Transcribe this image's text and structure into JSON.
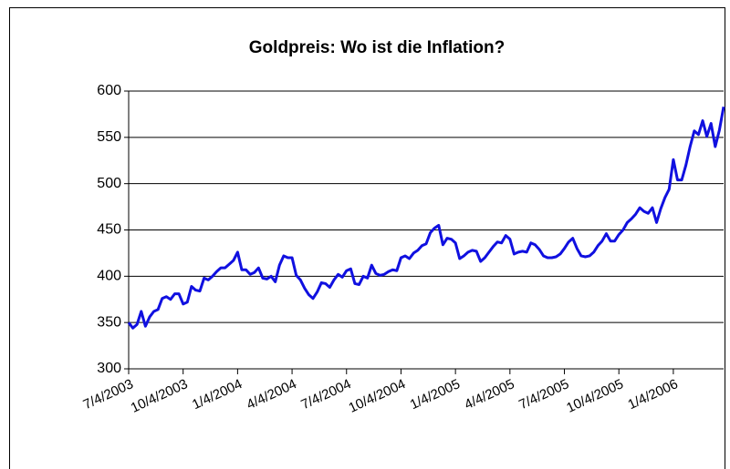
{
  "chart_data": {
    "type": "line",
    "title": "Goldpreis: Wo ist die Inflation?",
    "categories": [
      "7/4/2003",
      null,
      null,
      null,
      null,
      null,
      null,
      null,
      null,
      null,
      null,
      null,
      null,
      "10/4/2003",
      null,
      null,
      null,
      null,
      null,
      null,
      null,
      null,
      null,
      null,
      null,
      null,
      "1/4/2004",
      null,
      null,
      null,
      null,
      null,
      null,
      null,
      null,
      null,
      null,
      null,
      null,
      "4/4/2004",
      null,
      null,
      null,
      null,
      null,
      null,
      null,
      null,
      null,
      null,
      null,
      null,
      "7/4/2004",
      null,
      null,
      null,
      null,
      null,
      null,
      null,
      null,
      null,
      null,
      null,
      null,
      "10/4/2004",
      null,
      null,
      null,
      null,
      null,
      null,
      null,
      null,
      null,
      null,
      null,
      null,
      "1/4/2005",
      null,
      null,
      null,
      null,
      null,
      null,
      null,
      null,
      null,
      null,
      null,
      null,
      "4/4/2005",
      null,
      null,
      null,
      null,
      null,
      null,
      null,
      null,
      null,
      null,
      null,
      null,
      "7/4/2005",
      null,
      null,
      null,
      null,
      null,
      null,
      null,
      null,
      null,
      null,
      null,
      null,
      "10/4/2005",
      null,
      null,
      null,
      null,
      null,
      null,
      null,
      null,
      null,
      null,
      null,
      null,
      "1/4/2006",
      null,
      null,
      null,
      null,
      null,
      null,
      null,
      null,
      null,
      null,
      null,
      null
    ],
    "values": [
      350,
      344,
      348,
      362,
      346,
      356,
      362,
      364,
      376,
      378,
      375,
      381,
      381,
      370,
      372,
      389,
      385,
      384,
      398,
      396,
      400,
      405,
      409,
      409,
      413,
      417,
      426,
      407,
      407,
      402,
      404,
      409,
      398,
      397,
      400,
      394,
      412,
      422,
      420,
      420,
      401,
      396,
      387,
      380,
      376,
      383,
      393,
      392,
      388,
      396,
      402,
      399,
      406,
      408,
      392,
      391,
      400,
      398,
      412,
      403,
      401,
      402,
      405,
      407,
      406,
      420,
      422,
      419,
      425,
      428,
      433,
      435,
      447,
      452,
      455,
      434,
      441,
      440,
      436,
      419,
      422,
      426,
      428,
      427,
      416,
      420,
      426,
      432,
      437,
      436,
      444,
      440,
      424,
      426,
      427,
      426,
      436,
      434,
      429,
      422,
      420,
      420,
      421,
      424,
      430,
      437,
      441,
      430,
      422,
      421,
      422,
      426,
      433,
      438,
      446,
      438,
      438,
      445,
      450,
      458,
      462,
      467,
      474,
      470,
      468,
      474,
      458,
      473,
      485,
      494,
      526,
      504,
      504,
      520,
      540,
      557,
      553,
      568,
      551,
      565,
      540,
      558,
      583
    ],
    "color": "#1010e0",
    "ylim": [
      300,
      600
    ],
    "yticks": [
      300,
      350,
      400,
      450,
      500,
      550,
      600
    ],
    "grid": true
  }
}
